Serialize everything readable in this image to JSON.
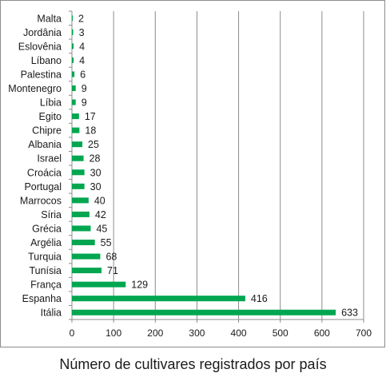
{
  "chart_data": {
    "type": "bar",
    "orientation": "horizontal",
    "title": "",
    "xlabel": "",
    "ylabel": "",
    "caption": "Número de cultivares registrados por país",
    "categories": [
      "Malta",
      "Jordânia",
      "Eslovênia",
      "Líbano",
      "Palestina",
      "Montenegro",
      "Líbia",
      "Egito",
      "Chipre",
      "Albania",
      "Israel",
      "Croácia",
      "Portugal",
      "Marrocos",
      "Síria",
      "Grécia",
      "Argélia",
      "Turquia",
      "Tunísia",
      "França",
      "Espanha",
      "Itália"
    ],
    "values": [
      2,
      3,
      4,
      4,
      6,
      9,
      9,
      17,
      18,
      25,
      28,
      30,
      30,
      40,
      42,
      45,
      55,
      68,
      71,
      129,
      416,
      633
    ],
    "xlim": [
      0,
      700
    ],
    "xticks": [
      0,
      100,
      200,
      300,
      400,
      500,
      600,
      700
    ],
    "grid": true,
    "legend": "none",
    "bar_color": "#00a650",
    "grid_color": "#8c8c8c",
    "data_labels": true
  }
}
